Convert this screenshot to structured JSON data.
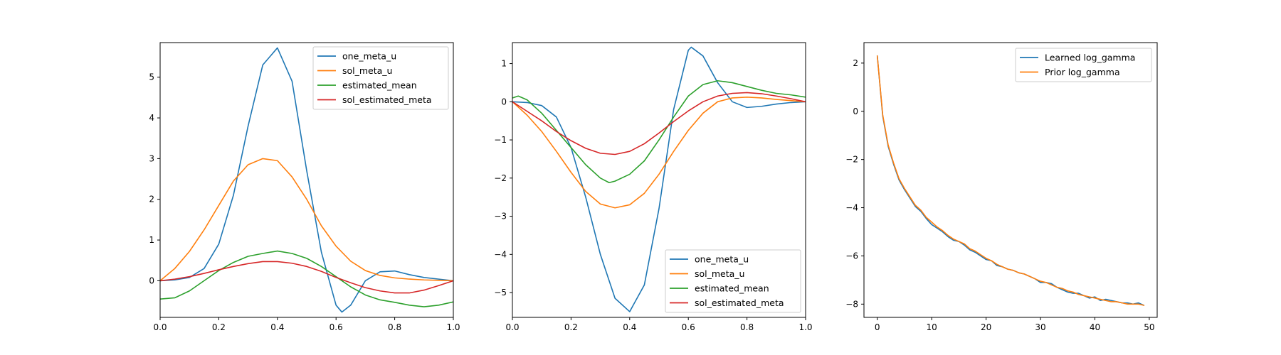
{
  "colors": {
    "blue": "#1f77b4",
    "orange": "#ff7f0e",
    "green": "#2ca02c",
    "red": "#d62728"
  },
  "chart_data": [
    {
      "type": "line",
      "xlim": [
        0,
        1
      ],
      "ylim": [
        -0.9,
        5.85
      ],
      "xticks": [
        0.0,
        0.2,
        0.4,
        0.6,
        0.8,
        1.0
      ],
      "xtick_labels": [
        "0.0",
        "0.2",
        "0.4",
        "0.6",
        "0.8",
        "1.0"
      ],
      "yticks": [
        0,
        1,
        2,
        3,
        4,
        5
      ],
      "ytick_labels": [
        "0",
        "1",
        "2",
        "3",
        "4",
        "5"
      ],
      "legend_position": "upper right",
      "series": [
        {
          "name": "one_meta_u",
          "color": "#1f77b4",
          "x": [
            0,
            0.05,
            0.1,
            0.15,
            0.2,
            0.25,
            0.3,
            0.35,
            0.4,
            0.45,
            0.5,
            0.55,
            0.6,
            0.62,
            0.65,
            0.7,
            0.75,
            0.8,
            0.85,
            0.9,
            0.95,
            1.0
          ],
          "y": [
            0,
            0.02,
            0.08,
            0.3,
            0.9,
            2.1,
            3.8,
            5.3,
            5.72,
            4.9,
            2.7,
            0.7,
            -0.6,
            -0.77,
            -0.6,
            0.0,
            0.22,
            0.24,
            0.15,
            0.08,
            0.04,
            0
          ]
        },
        {
          "name": "sol_meta_u",
          "color": "#ff7f0e",
          "x": [
            0,
            0.05,
            0.1,
            0.15,
            0.2,
            0.25,
            0.3,
            0.35,
            0.4,
            0.45,
            0.5,
            0.55,
            0.6,
            0.65,
            0.7,
            0.75,
            0.8,
            0.85,
            0.9,
            0.95,
            1.0
          ],
          "y": [
            0,
            0.3,
            0.72,
            1.25,
            1.85,
            2.45,
            2.85,
            3.0,
            2.95,
            2.55,
            2.0,
            1.35,
            0.85,
            0.48,
            0.25,
            0.13,
            0.07,
            0.04,
            0.02,
            0.01,
            0
          ]
        },
        {
          "name": "estimated_mean",
          "color": "#2ca02c",
          "x": [
            0,
            0.05,
            0.1,
            0.15,
            0.2,
            0.25,
            0.3,
            0.35,
            0.4,
            0.45,
            0.5,
            0.55,
            0.6,
            0.65,
            0.7,
            0.75,
            0.8,
            0.85,
            0.9,
            0.95,
            1.0
          ],
          "y": [
            -0.45,
            -0.42,
            -0.25,
            0.0,
            0.25,
            0.45,
            0.6,
            0.67,
            0.73,
            0.67,
            0.55,
            0.35,
            0.1,
            -0.15,
            -0.35,
            -0.47,
            -0.53,
            -0.6,
            -0.64,
            -0.6,
            -0.52
          ]
        },
        {
          "name": "sol_estimated_meta",
          "color": "#d62728",
          "x": [
            0,
            0.05,
            0.1,
            0.15,
            0.2,
            0.25,
            0.3,
            0.35,
            0.4,
            0.45,
            0.5,
            0.55,
            0.6,
            0.65,
            0.7,
            0.75,
            0.8,
            0.85,
            0.9,
            0.95,
            1.0
          ],
          "y": [
            0,
            0.04,
            0.1,
            0.18,
            0.27,
            0.35,
            0.42,
            0.47,
            0.47,
            0.43,
            0.35,
            0.23,
            0.08,
            -0.05,
            -0.17,
            -0.25,
            -0.3,
            -0.3,
            -0.23,
            -0.12,
            0
          ]
        }
      ]
    },
    {
      "type": "line",
      "xlim": [
        0,
        1
      ],
      "ylim": [
        -5.65,
        1.55
      ],
      "xticks": [
        0.0,
        0.2,
        0.4,
        0.6,
        0.8,
        1.0
      ],
      "xtick_labels": [
        "0.0",
        "0.2",
        "0.4",
        "0.6",
        "0.8",
        "1.0"
      ],
      "yticks": [
        -5,
        -4,
        -3,
        -2,
        -1,
        0,
        1
      ],
      "ytick_labels": [
        "−5",
        "−4",
        "−3",
        "−2",
        "−1",
        "0",
        "1"
      ],
      "legend_position": "lower right",
      "series": [
        {
          "name": "one_meta_u",
          "color": "#1f77b4",
          "x": [
            0,
            0.05,
            0.1,
            0.15,
            0.2,
            0.25,
            0.3,
            0.35,
            0.4,
            0.45,
            0.5,
            0.55,
            0.6,
            0.61,
            0.65,
            0.7,
            0.75,
            0.8,
            0.85,
            0.9,
            0.95,
            1.0
          ],
          "y": [
            0,
            -0.02,
            -0.1,
            -0.4,
            -1.2,
            -2.5,
            -4.0,
            -5.15,
            -5.5,
            -4.8,
            -2.8,
            -0.2,
            1.35,
            1.43,
            1.2,
            0.5,
            0.0,
            -0.15,
            -0.12,
            -0.06,
            -0.02,
            0
          ]
        },
        {
          "name": "sol_meta_u",
          "color": "#ff7f0e",
          "x": [
            0,
            0.05,
            0.1,
            0.15,
            0.2,
            0.25,
            0.3,
            0.35,
            0.4,
            0.45,
            0.5,
            0.55,
            0.6,
            0.65,
            0.7,
            0.75,
            0.8,
            0.85,
            0.9,
            0.95,
            1.0
          ],
          "y": [
            0,
            -0.35,
            -0.78,
            -1.3,
            -1.85,
            -2.35,
            -2.68,
            -2.78,
            -2.7,
            -2.4,
            -1.9,
            -1.3,
            -0.75,
            -0.3,
            0.0,
            0.1,
            0.12,
            0.1,
            0.06,
            0.03,
            0
          ]
        },
        {
          "name": "estimated_mean",
          "color": "#2ca02c",
          "x": [
            0,
            0.02,
            0.05,
            0.1,
            0.15,
            0.2,
            0.25,
            0.3,
            0.33,
            0.35,
            0.4,
            0.45,
            0.5,
            0.55,
            0.6,
            0.65,
            0.7,
            0.75,
            0.8,
            0.85,
            0.9,
            0.95,
            1.0
          ],
          "y": [
            0.1,
            0.15,
            0.05,
            -0.3,
            -0.75,
            -1.2,
            -1.65,
            -2.0,
            -2.12,
            -2.08,
            -1.9,
            -1.55,
            -1.0,
            -0.4,
            0.15,
            0.45,
            0.55,
            0.5,
            0.4,
            0.3,
            0.22,
            0.18,
            0.12
          ]
        },
        {
          "name": "sol_estimated_meta",
          "color": "#d62728",
          "x": [
            0,
            0.05,
            0.1,
            0.15,
            0.2,
            0.25,
            0.3,
            0.35,
            0.4,
            0.45,
            0.5,
            0.55,
            0.6,
            0.65,
            0.7,
            0.75,
            0.8,
            0.85,
            0.9,
            0.95,
            1.0
          ],
          "y": [
            0,
            -0.25,
            -0.5,
            -0.78,
            -1.02,
            -1.22,
            -1.35,
            -1.38,
            -1.3,
            -1.1,
            -0.82,
            -0.52,
            -0.24,
            0.0,
            0.15,
            0.22,
            0.24,
            0.21,
            0.15,
            0.08,
            0
          ]
        }
      ]
    },
    {
      "type": "line",
      "xlim": [
        -2.45,
        51.45
      ],
      "ylim": [
        -8.55,
        2.85
      ],
      "xticks": [
        0,
        10,
        20,
        30,
        40,
        50
      ],
      "xtick_labels": [
        "0",
        "10",
        "20",
        "30",
        "40",
        "50"
      ],
      "yticks": [
        -8,
        -6,
        -4,
        -2,
        0,
        2
      ],
      "ytick_labels": [
        "−8",
        "−6",
        "−4",
        "−2",
        "0",
        "2"
      ],
      "legend_position": "upper right",
      "series": [
        {
          "name": "Learned log_gamma",
          "color": "#1f77b4",
          "x": [
            0,
            1,
            2,
            3,
            4,
            5,
            6,
            7,
            8,
            9,
            10,
            11,
            12,
            13,
            14,
            15,
            16,
            17,
            18,
            19,
            20,
            21,
            22,
            23,
            24,
            25,
            26,
            27,
            28,
            29,
            30,
            31,
            32,
            33,
            34,
            35,
            36,
            37,
            38,
            39,
            40,
            41,
            42,
            43,
            44,
            45,
            46,
            47,
            48,
            49
          ],
          "y": [
            2.3,
            -0.2,
            -1.45,
            -2.2,
            -2.85,
            -3.25,
            -3.6,
            -3.95,
            -4.15,
            -4.45,
            -4.7,
            -4.85,
            -5.0,
            -5.2,
            -5.35,
            -5.4,
            -5.55,
            -5.75,
            -5.85,
            -6.0,
            -6.15,
            -6.2,
            -6.4,
            -6.45,
            -6.55,
            -6.6,
            -6.7,
            -6.75,
            -6.85,
            -6.95,
            -7.1,
            -7.1,
            -7.15,
            -7.3,
            -7.4,
            -7.5,
            -7.55,
            -7.55,
            -7.65,
            -7.75,
            -7.7,
            -7.85,
            -7.8,
            -7.85,
            -7.9,
            -7.95,
            -7.95,
            -8.0,
            -7.95,
            -8.05
          ]
        },
        {
          "name": "Prior log_gamma",
          "color": "#ff7f0e",
          "x": [
            0,
            1,
            2,
            3,
            4,
            5,
            6,
            7,
            8,
            9,
            10,
            11,
            12,
            13,
            14,
            15,
            16,
            17,
            18,
            19,
            20,
            21,
            22,
            23,
            24,
            25,
            26,
            27,
            28,
            29,
            30,
            31,
            32,
            33,
            34,
            35,
            36,
            37,
            38,
            39,
            40,
            41,
            42,
            43,
            44,
            45,
            46,
            47,
            48,
            49
          ],
          "y": [
            2.3,
            -0.15,
            -1.4,
            -2.15,
            -2.8,
            -3.2,
            -3.55,
            -3.9,
            -4.1,
            -4.4,
            -4.6,
            -4.8,
            -4.95,
            -5.15,
            -5.3,
            -5.4,
            -5.5,
            -5.7,
            -5.8,
            -5.95,
            -6.1,
            -6.2,
            -6.35,
            -6.45,
            -6.55,
            -6.6,
            -6.7,
            -6.75,
            -6.85,
            -6.95,
            -7.05,
            -7.1,
            -7.2,
            -7.3,
            -7.35,
            -7.45,
            -7.5,
            -7.6,
            -7.65,
            -7.7,
            -7.75,
            -7.8,
            -7.85,
            -7.9,
            -7.9,
            -7.95,
            -8.0,
            -8.0,
            -8.0,
            -8.05
          ]
        }
      ]
    }
  ]
}
